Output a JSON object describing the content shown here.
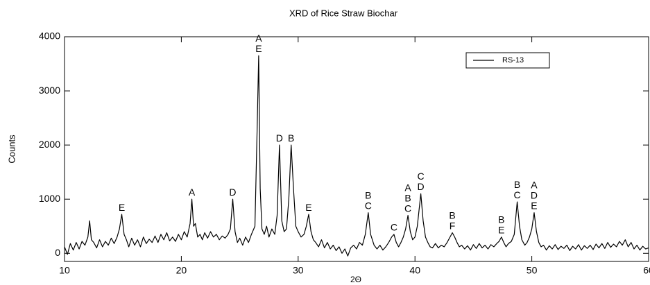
{
  "chart_data": {
    "type": "line",
    "title": "XRD of Rice Straw Biochar",
    "xlabel": "2Θ",
    "ylabel": "Counts",
    "xlim": [
      10,
      60
    ],
    "ylim": [
      -150,
      4000
    ],
    "xticks": [
      10,
      20,
      30,
      40,
      50,
      60
    ],
    "yticks": [
      0,
      1000,
      2000,
      3000,
      4000
    ],
    "legend": "upper right",
    "x": [
      10,
      10.25,
      10.5,
      10.75,
      11,
      11.25,
      11.5,
      11.75,
      12,
      12.15,
      12.3,
      12.5,
      12.75,
      13,
      13.25,
      13.5,
      13.75,
      14,
      14.25,
      14.5,
      14.7,
      14.9,
      15.1,
      15.3,
      15.5,
      15.75,
      16,
      16.25,
      16.5,
      16.75,
      17,
      17.25,
      17.5,
      17.75,
      18,
      18.25,
      18.5,
      18.75,
      19,
      19.25,
      19.5,
      19.75,
      20,
      20.25,
      20.5,
      20.75,
      20.9,
      21.05,
      21.2,
      21.4,
      21.6,
      21.8,
      22,
      22.25,
      22.5,
      22.75,
      23,
      23.25,
      23.5,
      23.75,
      24,
      24.2,
      24.4,
      24.6,
      24.8,
      25,
      25.25,
      25.5,
      25.75,
      26,
      26.3,
      26.5,
      26.62,
      26.75,
      26.9,
      27.1,
      27.3,
      27.5,
      27.75,
      28,
      28.2,
      28.4,
      28.6,
      28.8,
      29,
      29.2,
      29.4,
      29.6,
      29.8,
      30,
      30.25,
      30.5,
      30.7,
      30.9,
      31.1,
      31.3,
      31.5,
      31.75,
      32,
      32.25,
      32.5,
      32.75,
      33,
      33.25,
      33.5,
      33.75,
      34,
      34.25,
      34.5,
      34.75,
      35,
      35.25,
      35.5,
      35.75,
      36,
      36.2,
      36.5,
      36.75,
      37,
      37.25,
      37.5,
      37.75,
      38,
      38.2,
      38.4,
      38.6,
      38.8,
      39,
      39.2,
      39.4,
      39.6,
      39.8,
      40,
      40.2,
      40.5,
      40.7,
      40.9,
      41.1,
      41.3,
      41.5,
      41.75,
      42,
      42.25,
      42.5,
      42.75,
      43,
      43.2,
      43.4,
      43.6,
      43.8,
      44,
      44.25,
      44.5,
      44.75,
      45,
      45.25,
      45.5,
      45.75,
      46,
      46.25,
      46.5,
      46.75,
      47,
      47.2,
      47.4,
      47.6,
      47.8,
      48,
      48.25,
      48.5,
      48.75,
      48.95,
      49.15,
      49.4,
      49.6,
      49.8,
      50,
      50.2,
      50.4,
      50.6,
      50.8,
      51,
      51.25,
      51.5,
      51.75,
      52,
      52.25,
      52.5,
      52.75,
      53,
      53.25,
      53.5,
      53.75,
      54,
      54.25,
      54.5,
      54.75,
      55,
      55.25,
      55.5,
      55.75,
      56,
      56.25,
      56.5,
      56.75,
      57,
      57.25,
      57.5,
      57.75,
      58,
      58.25,
      58.5,
      58.75,
      59,
      59.25,
      59.5,
      59.75,
      60
    ],
    "series": [
      {
        "name": "RS-13",
        "color": "#000000",
        "values": [
          120,
          -20,
          180,
          60,
          200,
          80,
          220,
          150,
          300,
          600,
          250,
          200,
          100,
          250,
          120,
          220,
          150,
          280,
          180,
          300,
          450,
          720,
          350,
          250,
          120,
          280,
          150,
          250,
          120,
          300,
          180,
          260,
          200,
          320,
          200,
          350,
          250,
          380,
          230,
          300,
          220,
          350,
          250,
          400,
          300,
          550,
          1000,
          500,
          550,
          300,
          350,
          250,
          380,
          280,
          400,
          300,
          350,
          250,
          320,
          280,
          350,
          450,
          1000,
          400,
          200,
          280,
          150,
          300,
          200,
          350,
          500,
          2400,
          3650,
          1200,
          450,
          350,
          500,
          300,
          450,
          350,
          700,
          2000,
          600,
          400,
          450,
          1000,
          2000,
          1200,
          500,
          400,
          300,
          350,
          500,
          720,
          400,
          250,
          200,
          120,
          250,
          100,
          200,
          80,
          150,
          50,
          120,
          0,
          80,
          -50,
          100,
          150,
          80,
          200,
          150,
          350,
          750,
          350,
          150,
          80,
          150,
          60,
          120,
          200,
          300,
          350,
          200,
          120,
          200,
          300,
          450,
          700,
          400,
          250,
          300,
          500,
          1100,
          600,
          300,
          200,
          120,
          100,
          180,
          100,
          150,
          120,
          200,
          300,
          380,
          300,
          200,
          120,
          150,
          80,
          140,
          60,
          160,
          90,
          180,
          100,
          150,
          80,
          160,
          120,
          180,
          220,
          300,
          200,
          120,
          180,
          220,
          350,
          950,
          500,
          250,
          150,
          200,
          300,
          450,
          750,
          400,
          200,
          120,
          150,
          60,
          140,
          80,
          160,
          70,
          130,
          90,
          150,
          50,
          130,
          80,
          160,
          60,
          140,
          90,
          150,
          70,
          170,
          100,
          180,
          90,
          200,
          110,
          170,
          120,
          220,
          150,
          250,
          120,
          200,
          80,
          150,
          60,
          130,
          80,
          100
        ]
      }
    ],
    "annotations": [
      {
        "x": 14.9,
        "labels": [
          "E"
        ]
      },
      {
        "x": 20.9,
        "labels": [
          "A"
        ]
      },
      {
        "x": 24.4,
        "labels": [
          "D"
        ]
      },
      {
        "x": 26.62,
        "labels": [
          "A",
          "E"
        ]
      },
      {
        "x": 28.4,
        "labels": [
          "D"
        ]
      },
      {
        "x": 29.4,
        "labels": [
          "B"
        ]
      },
      {
        "x": 30.9,
        "labels": [
          "E"
        ]
      },
      {
        "x": 36,
        "labels": [
          "B",
          "C"
        ]
      },
      {
        "x": 38.2,
        "labels": [
          "C"
        ]
      },
      {
        "x": 39.4,
        "labels": [
          "A",
          "B",
          "C"
        ]
      },
      {
        "x": 40.5,
        "labels": [
          "C",
          "D"
        ]
      },
      {
        "x": 43.2,
        "labels": [
          "B",
          "F"
        ]
      },
      {
        "x": 47.4,
        "labels": [
          "B",
          "E"
        ]
      },
      {
        "x": 48.75,
        "labels": [
          "B",
          "C"
        ]
      },
      {
        "x": 50.2,
        "labels": [
          "A",
          "D",
          "E"
        ]
      }
    ]
  }
}
